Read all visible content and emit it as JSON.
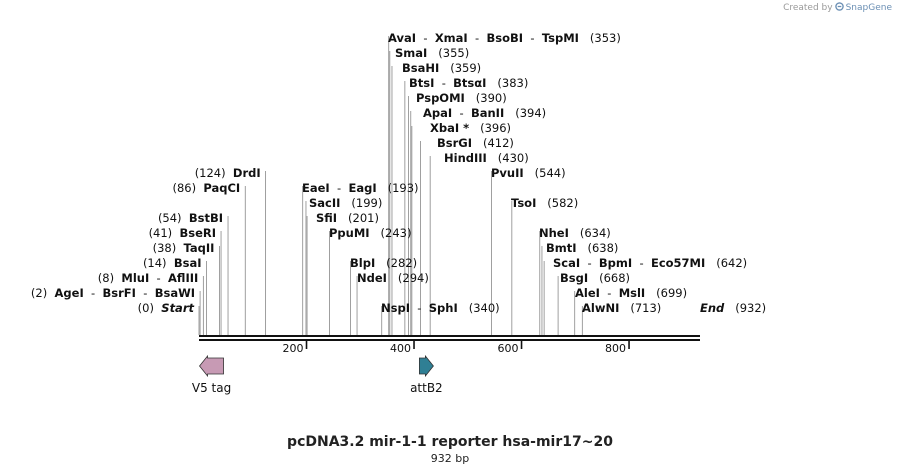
{
  "credit": {
    "prefix": "Created by",
    "brand": "SnapGene"
  },
  "map": {
    "title": "pcDNA3.2 mir-1-1 reporter hsa-mir17~20",
    "length_label": "932 bp",
    "length": 932,
    "axis_ticks": [
      200,
      400,
      600,
      800
    ],
    "features": [
      {
        "name": "V5 tag",
        "start": 1,
        "end": 42,
        "direction": "reverse",
        "color": "#c79ab4"
      },
      {
        "name": "attB2",
        "start": 410,
        "end": 435,
        "direction": "forward",
        "color": "#2f7f94"
      }
    ],
    "sites": [
      {
        "names": [
          "AgeI",
          "BsrFI",
          "BsaWI"
        ],
        "pos": 2,
        "side": "left",
        "row": 1
      },
      {
        "names": [
          "Start"
        ],
        "pos": 0,
        "side": "left",
        "row": 0,
        "italic": true
      },
      {
        "names": [
          "MluI",
          "AflIII"
        ],
        "pos": 8,
        "side": "left",
        "row": 2
      },
      {
        "names": [
          "BsaI"
        ],
        "pos": 14,
        "side": "left",
        "row": 3
      },
      {
        "names": [
          "TaqII"
        ],
        "pos": 38,
        "side": "left",
        "row": 4
      },
      {
        "names": [
          "BseRI"
        ],
        "pos": 41,
        "side": "left",
        "row": 5
      },
      {
        "names": [
          "BstBI"
        ],
        "pos": 54,
        "side": "left",
        "row": 6
      },
      {
        "names": [
          "PaqCI"
        ],
        "pos": 86,
        "side": "left",
        "row": 8
      },
      {
        "names": [
          "DrdI"
        ],
        "pos": 124,
        "side": "left",
        "row": 9
      },
      {
        "names": [
          "EaeI",
          "EagI"
        ],
        "pos": 193,
        "side": "right",
        "row": 8,
        "label_x": 302
      },
      {
        "names": [
          "SacII"
        ],
        "pos": 199,
        "side": "right",
        "row": 7,
        "label_x": 309
      },
      {
        "names": [
          "SfiI"
        ],
        "pos": 201,
        "side": "right",
        "row": 6,
        "label_x": 316
      },
      {
        "names": [
          "PpuMI"
        ],
        "pos": 243,
        "side": "right",
        "row": 5,
        "label_x": 329
      },
      {
        "names": [
          "BlpI"
        ],
        "pos": 282,
        "side": "right",
        "row": 3,
        "label_x": 350
      },
      {
        "names": [
          "NdeI"
        ],
        "pos": 294,
        "side": "right",
        "row": 2,
        "label_x": 357
      },
      {
        "names": [
          "NspI",
          "SphI"
        ],
        "pos": 340,
        "side": "right",
        "row": 0,
        "label_x": 381
      },
      {
        "names": [
          "AvaI",
          "XmaI",
          "BsoBI",
          "TspMI"
        ],
        "pos": 353,
        "side": "right",
        "row": 18,
        "label_x": 388
      },
      {
        "names": [
          "SmaI"
        ],
        "pos": 355,
        "side": "right",
        "row": 17,
        "label_x": 395
      },
      {
        "names": [
          "BsaHI"
        ],
        "pos": 359,
        "side": "right",
        "row": 16,
        "label_x": 402
      },
      {
        "names": [
          "BtsI",
          "BtsαI"
        ],
        "pos": 383,
        "side": "right",
        "row": 15,
        "label_x": 409
      },
      {
        "names": [
          "PspOMI"
        ],
        "pos": 390,
        "side": "right",
        "row": 14,
        "label_x": 416
      },
      {
        "names": [
          "ApaI",
          "BanII"
        ],
        "pos": 394,
        "side": "right",
        "row": 13,
        "label_x": 423
      },
      {
        "names": [
          "XbaI *"
        ],
        "pos": 396,
        "side": "right",
        "row": 12,
        "label_x": 430
      },
      {
        "names": [
          "BsrGI"
        ],
        "pos": 412,
        "side": "right",
        "row": 11,
        "label_x": 437
      },
      {
        "names": [
          "HindIII"
        ],
        "pos": 430,
        "side": "right",
        "row": 10,
        "label_x": 444
      },
      {
        "names": [
          "PvuII"
        ],
        "pos": 544,
        "side": "right",
        "row": 9,
        "label_x": 491
      },
      {
        "names": [
          "TsoI"
        ],
        "pos": 582,
        "side": "right",
        "row": 7,
        "label_x": 511
      },
      {
        "names": [
          "NheI"
        ],
        "pos": 634,
        "side": "right",
        "row": 5,
        "label_x": 539
      },
      {
        "names": [
          "BmtI"
        ],
        "pos": 638,
        "side": "right",
        "row": 4,
        "label_x": 546
      },
      {
        "names": [
          "ScaI",
          "BpmI",
          "Eco57MI"
        ],
        "pos": 642,
        "side": "right",
        "row": 3,
        "label_x": 553
      },
      {
        "names": [
          "BsgI"
        ],
        "pos": 668,
        "side": "right",
        "row": 2,
        "label_x": 560
      },
      {
        "names": [
          "AleI",
          "MslI"
        ],
        "pos": 699,
        "side": "right",
        "row": 1,
        "label_x": 575
      },
      {
        "names": [
          "AlwNI"
        ],
        "pos": 713,
        "side": "right",
        "row": 0,
        "label_x": 582
      },
      {
        "names": [
          "End"
        ],
        "pos": 932,
        "side": "right",
        "row": 0,
        "italic": true,
        "label_x": 700
      }
    ]
  }
}
